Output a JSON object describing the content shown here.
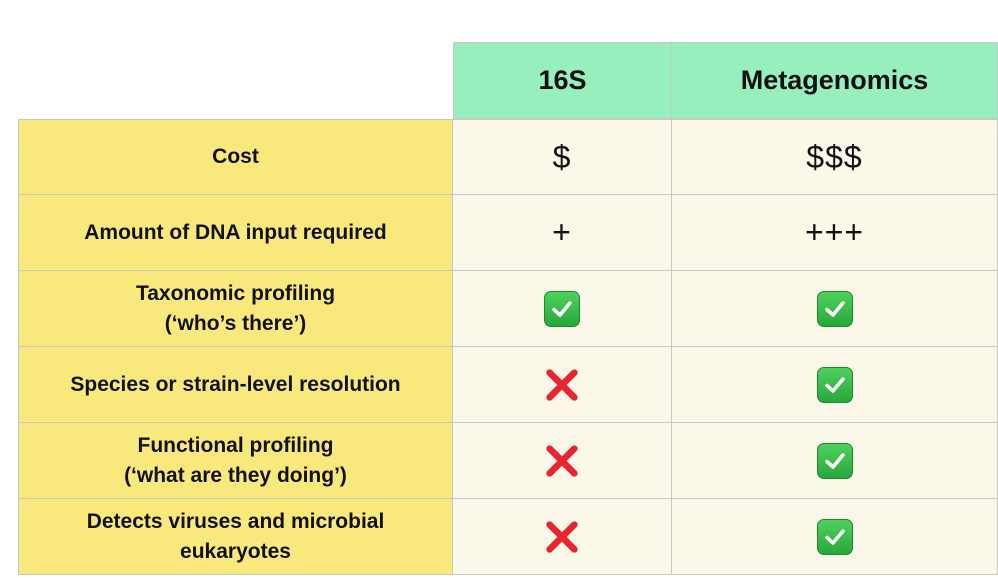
{
  "header": {
    "col_16s": "16S",
    "col_metagenomics": "Metagenomics"
  },
  "rows": [
    {
      "label": "Cost",
      "s16": "$",
      "meta": "$$$"
    },
    {
      "label": "Amount of DNA input required",
      "s16": "+",
      "meta": "+++"
    },
    {
      "label_line1": "Taxonomic profiling",
      "label_line2": "(‘who’s there’)",
      "s16": "check-icon",
      "meta": "check-icon"
    },
    {
      "label": "Species or strain-level resolution",
      "s16": "cross-icon",
      "meta": "check-icon"
    },
    {
      "label_line1": "Functional profiling",
      "label_line2": "(‘what are they doing’)",
      "s16": "cross-icon",
      "meta": "check-icon"
    },
    {
      "label_line1": "Detects viruses and microbial",
      "label_line2": "eukaryotes",
      "s16": "cross-icon",
      "meta": "check-icon"
    }
  ],
  "colors": {
    "header_bg": "#97efbe",
    "label_bg": "#f9e87c",
    "cell_bg": "#fbf8e9",
    "check_green": "#2fb443",
    "cross_red": "#e8262f"
  }
}
